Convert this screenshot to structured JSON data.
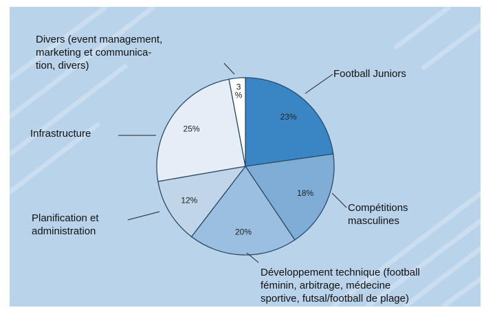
{
  "chart_data": {
    "type": "pie",
    "slices": [
      {
        "label": "Football Juniors",
        "value": 23,
        "value_label": "23%",
        "color": "#3a85c3"
      },
      {
        "label": "Compétitions masculines",
        "value": 18,
        "value_label": "18%",
        "color": "#7fadd6"
      },
      {
        "label": "Développement technique (football féminin, arbitrage, médecine sportive, futsal/football de plage)",
        "value": 20,
        "value_label": "20%",
        "color": "#9bbfe0"
      },
      {
        "label": "Planification et administration",
        "value": 12,
        "value_label": "12%",
        "color": "#c0d5e8"
      },
      {
        "label": "Infrastructure",
        "value": 25,
        "value_label": "25%",
        "color": "#e5eef7"
      },
      {
        "label": "Divers (event management, marketing et communica-tion, divers)",
        "value": 3,
        "value_label": "3 %",
        "color": "#ffffff"
      }
    ],
    "colors": {
      "background": "#b9d3ea",
      "slice_border": "#2b4a66"
    }
  },
  "labels": {
    "football_juniors": "Football Juniors",
    "competitions": "Compétitions\nmasculines",
    "developpement": "Développement technique (football\nféminin, arbitrage, médecine\nsportive, futsal/football de plage)",
    "planification": "Planification et\nadministration",
    "infrastructure": "Infrastructure",
    "divers": "Divers (event management,\nmarketing et communica-\ntion, divers)"
  }
}
